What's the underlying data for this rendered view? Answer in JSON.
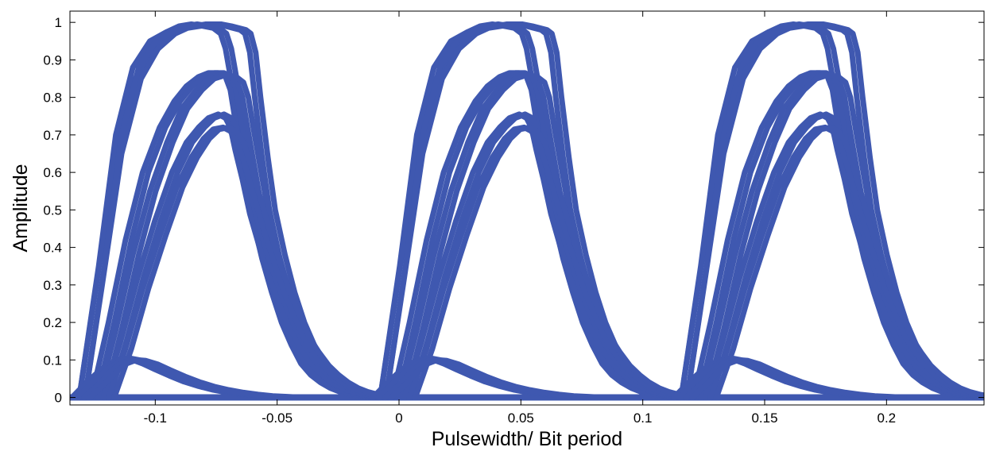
{
  "chart_data": {
    "type": "line",
    "title": "",
    "xlabel": "Pulsewidth/ Bit period",
    "ylabel": "Amplitude",
    "xlim": [
      -0.135,
      0.24
    ],
    "ylim": [
      -0.02,
      1.03
    ],
    "xticks": [
      -0.1,
      -0.05,
      0,
      0.05,
      0.1,
      0.15,
      0.2
    ],
    "xtick_labels": [
      "-0.1",
      "-0.05",
      "0",
      "0.05",
      "0.1",
      "0.15",
      "0.2"
    ],
    "yticks": [
      0,
      0.1,
      0.2,
      0.3,
      0.4,
      0.5,
      0.6,
      0.7,
      0.8,
      0.9,
      1
    ],
    "ytick_labels": [
      "0",
      "0.1",
      "0.2",
      "0.3",
      "0.4",
      "0.5",
      "0.6",
      "0.7",
      "0.8",
      "0.9",
      "1"
    ],
    "grid": false,
    "line_color": "#3f58b0",
    "period": 0.1235,
    "pulse_centers": [
      -0.075,
      0.0485,
      0.172
    ],
    "series": [
      {
        "x": [
          -0.13,
          -0.123,
          -0.115,
          -0.107,
          -0.1,
          -0.093,
          -0.088,
          -0.083,
          -0.078,
          -0.074,
          -0.07,
          -0.067,
          -0.064,
          -0.062,
          -0.06,
          -0.058,
          -0.055,
          -0.052,
          -0.048,
          -0.044,
          -0.04,
          -0.036,
          -0.032,
          -0.028,
          -0.024,
          -0.02,
          -0.016,
          -0.012,
          -0.008,
          -0.004,
          0.0
        ],
        "y": [
          0.0,
          0.3,
          0.65,
          0.85,
          0.93,
          0.97,
          0.985,
          0.99,
          0.995,
          0.995,
          0.99,
          0.985,
          0.98,
          0.97,
          0.92,
          0.8,
          0.64,
          0.5,
          0.38,
          0.28,
          0.2,
          0.14,
          0.09,
          0.06,
          0.04,
          0.025,
          0.015,
          0.008,
          0.004,
          0.002,
          0.0
        ]
      },
      {
        "x": [
          -0.13,
          -0.122,
          -0.115,
          -0.108,
          -0.101,
          -0.094,
          -0.089,
          -0.084,
          -0.079,
          -0.075,
          -0.072,
          -0.07,
          -0.067,
          -0.065,
          -0.062,
          -0.059,
          -0.055,
          -0.051,
          -0.047,
          -0.043,
          -0.039,
          -0.035,
          -0.031,
          -0.027,
          -0.023,
          -0.019,
          -0.015,
          -0.011,
          -0.007,
          -0.003
        ],
        "y": [
          0.0,
          0.35,
          0.7,
          0.88,
          0.95,
          0.975,
          0.99,
          0.995,
          0.99,
          0.985,
          0.97,
          0.93,
          0.82,
          0.72,
          0.6,
          0.48,
          0.37,
          0.28,
          0.2,
          0.14,
          0.09,
          0.06,
          0.04,
          0.025,
          0.015,
          0.008,
          0.004,
          0.002,
          0.001,
          0.0
        ]
      },
      {
        "x": [
          -0.125,
          -0.118,
          -0.111,
          -0.104,
          -0.097,
          -0.091,
          -0.086,
          -0.081,
          -0.077,
          -0.073,
          -0.07,
          -0.068,
          -0.066,
          -0.063,
          -0.06,
          -0.056,
          -0.052,
          -0.048,
          -0.044,
          -0.04,
          -0.036,
          -0.032,
          -0.028,
          -0.024,
          -0.02,
          -0.016,
          -0.012,
          -0.008,
          -0.004,
          0.0
        ],
        "y": [
          0.0,
          0.2,
          0.42,
          0.6,
          0.72,
          0.79,
          0.83,
          0.855,
          0.865,
          0.865,
          0.855,
          0.82,
          0.74,
          0.64,
          0.52,
          0.41,
          0.31,
          0.23,
          0.17,
          0.12,
          0.08,
          0.055,
          0.035,
          0.022,
          0.013,
          0.007,
          0.004,
          0.002,
          0.001,
          0.0
        ]
      },
      {
        "x": [
          -0.122,
          -0.115,
          -0.108,
          -0.101,
          -0.094,
          -0.088,
          -0.082,
          -0.077,
          -0.072,
          -0.068,
          -0.065,
          -0.063,
          -0.061,
          -0.058,
          -0.055,
          -0.051,
          -0.047,
          -0.043,
          -0.039,
          -0.035,
          -0.031,
          -0.027,
          -0.023,
          -0.019,
          -0.015,
          -0.011,
          -0.007,
          -0.003,
          0.001
        ],
        "y": [
          0.0,
          0.18,
          0.38,
          0.55,
          0.68,
          0.77,
          0.82,
          0.85,
          0.86,
          0.855,
          0.84,
          0.8,
          0.72,
          0.61,
          0.5,
          0.39,
          0.3,
          0.22,
          0.16,
          0.11,
          0.075,
          0.05,
          0.032,
          0.02,
          0.012,
          0.006,
          0.003,
          0.001,
          0.0
        ]
      },
      {
        "x": [
          -0.12,
          -0.113,
          -0.106,
          -0.099,
          -0.092,
          -0.086,
          -0.081,
          -0.077,
          -0.073,
          -0.07,
          -0.068,
          -0.066,
          -0.063,
          -0.06,
          -0.056,
          -0.052,
          -0.048,
          -0.044,
          -0.04,
          -0.036,
          -0.032,
          -0.028,
          -0.024,
          -0.02,
          -0.016,
          -0.012,
          -0.008,
          -0.004,
          0.0
        ],
        "y": [
          0.0,
          0.15,
          0.32,
          0.47,
          0.6,
          0.68,
          0.72,
          0.745,
          0.755,
          0.745,
          0.72,
          0.66,
          0.58,
          0.49,
          0.4,
          0.32,
          0.25,
          0.19,
          0.14,
          0.1,
          0.07,
          0.048,
          0.032,
          0.02,
          0.012,
          0.007,
          0.003,
          0.001,
          0.0
        ]
      },
      {
        "x": [
          -0.118,
          -0.111,
          -0.104,
          -0.097,
          -0.09,
          -0.084,
          -0.079,
          -0.075,
          -0.071,
          -0.068,
          -0.065,
          -0.062,
          -0.058,
          -0.054,
          -0.05,
          -0.046,
          -0.042,
          -0.038,
          -0.034,
          -0.03,
          -0.026,
          -0.022,
          -0.018,
          -0.014,
          -0.01,
          -0.006,
          -0.002
        ],
        "y": [
          0.0,
          0.13,
          0.29,
          0.43,
          0.56,
          0.64,
          0.69,
          0.715,
          0.72,
          0.71,
          0.68,
          0.62,
          0.53,
          0.44,
          0.36,
          0.28,
          0.22,
          0.16,
          0.12,
          0.085,
          0.06,
          0.04,
          0.025,
          0.015,
          0.008,
          0.003,
          0.0
        ]
      },
      {
        "x": [
          -0.133,
          -0.127,
          -0.121,
          -0.116,
          -0.112,
          -0.108,
          -0.104,
          -0.099,
          -0.093,
          -0.087,
          -0.081,
          -0.075,
          -0.069,
          -0.063,
          -0.057,
          -0.051,
          -0.045
        ],
        "y": [
          0.0,
          0.04,
          0.075,
          0.095,
          0.105,
          0.1,
          0.09,
          0.075,
          0.058,
          0.042,
          0.03,
          0.02,
          0.013,
          0.008,
          0.005,
          0.002,
          0.0
        ]
      },
      {
        "x": [
          -0.128,
          -0.122,
          -0.117,
          -0.113,
          -0.109,
          -0.105,
          -0.1,
          -0.095,
          -0.089,
          -0.083,
          -0.077,
          -0.071,
          -0.065,
          -0.059,
          -0.053,
          -0.047,
          -0.041
        ],
        "y": [
          0.0,
          0.035,
          0.07,
          0.09,
          0.1,
          0.098,
          0.088,
          0.073,
          0.056,
          0.041,
          0.029,
          0.02,
          0.013,
          0.008,
          0.004,
          0.002,
          0.0
        ]
      }
    ]
  }
}
